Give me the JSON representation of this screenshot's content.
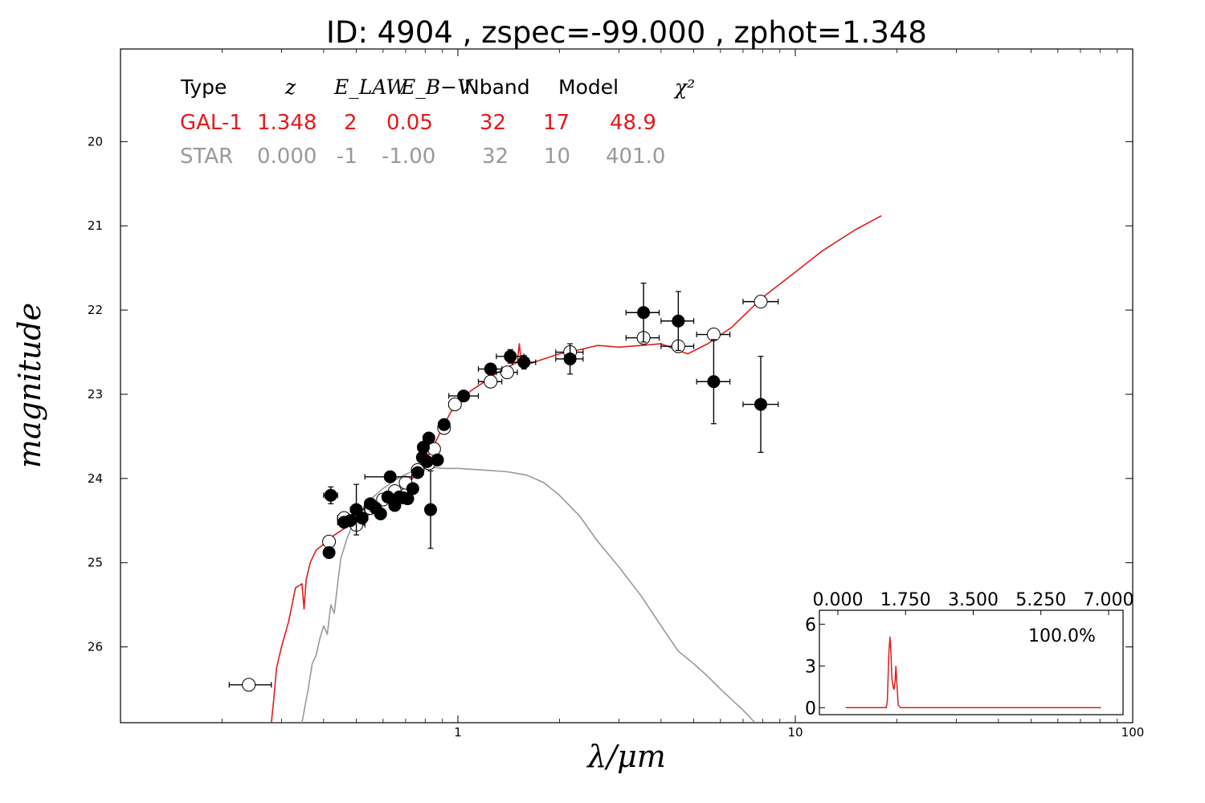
{
  "chart_data": [
    {
      "type": "scatter",
      "title": "ID:  4904  , zspec=-99.000 , zphot=1.348",
      "xlabel": "λ/μm",
      "ylabel": "magnitude",
      "xscale": "log",
      "xlim": [
        0.1,
        100
      ],
      "ylim": [
        26.9,
        18.9
      ],
      "y_inverted": true,
      "x_ticks": [
        {
          "value": 1,
          "label": "1"
        },
        {
          "value": 10,
          "label": "10"
        },
        {
          "value": 100,
          "label": "100"
        }
      ],
      "y_ticks": [
        {
          "value": 20,
          "label": "20"
        },
        {
          "value": 21,
          "label": "21"
        },
        {
          "value": 22,
          "label": "22"
        },
        {
          "value": 23,
          "label": "23"
        },
        {
          "value": 24,
          "label": "24"
        },
        {
          "value": 25,
          "label": "25"
        },
        {
          "value": 26,
          "label": "26"
        }
      ],
      "grid": false,
      "fit_table": {
        "headers": [
          "Type",
          "z",
          "E_LAW",
          "E_B−V",
          "Nband",
          "Model",
          "χ²"
        ],
        "rows": [
          {
            "color": "#e41a1c",
            "cells": [
              "GAL-1",
              "1.348",
              "2",
              "0.05",
              "32",
              "17",
              "48.9"
            ]
          },
          {
            "color": "#999999",
            "cells": [
              "STAR",
              "0.000",
              "-1",
              "-1.00",
              "32",
              "10",
              "401.0"
            ]
          }
        ]
      },
      "series": [
        {
          "name": "GAL-1",
          "role": "model-spectrum",
          "color": "#e41a1c",
          "points": [
            [
              0.28,
              26.9
            ],
            [
              0.285,
              26.6
            ],
            [
              0.29,
              26.25
            ],
            [
              0.3,
              26.0
            ],
            [
              0.315,
              25.7
            ],
            [
              0.33,
              25.3
            ],
            [
              0.345,
              25.25
            ],
            [
              0.35,
              25.55
            ],
            [
              0.355,
              25.2
            ],
            [
              0.365,
              25.0
            ],
            [
              0.38,
              24.85
            ],
            [
              0.4,
              24.78
            ],
            [
              0.42,
              24.7
            ],
            [
              0.45,
              24.62
            ],
            [
              0.48,
              24.55
            ],
            [
              0.5,
              24.52
            ],
            [
              0.55,
              24.42
            ],
            [
              0.6,
              24.3
            ],
            [
              0.65,
              24.2
            ],
            [
              0.7,
              24.1
            ],
            [
              0.75,
              23.95
            ],
            [
              0.8,
              23.8
            ],
            [
              0.85,
              23.6
            ],
            [
              0.9,
              23.4
            ],
            [
              0.95,
              23.22
            ],
            [
              1.0,
              23.1
            ],
            [
              1.1,
              22.95
            ],
            [
              1.2,
              22.85
            ],
            [
              1.3,
              22.75
            ],
            [
              1.4,
              22.68
            ],
            [
              1.5,
              22.62
            ],
            [
              1.52,
              22.4
            ],
            [
              1.54,
              22.62
            ],
            [
              1.6,
              22.65
            ],
            [
              1.8,
              22.58
            ],
            [
              2.0,
              22.52
            ],
            [
              2.3,
              22.47
            ],
            [
              2.6,
              22.42
            ],
            [
              3.0,
              22.44
            ],
            [
              3.5,
              22.42
            ],
            [
              4.0,
              22.4
            ],
            [
              4.5,
              22.48
            ],
            [
              4.8,
              22.52
            ],
            [
              5.5,
              22.4
            ],
            [
              6.5,
              22.2
            ],
            [
              8.0,
              21.85
            ],
            [
              10,
              21.55
            ],
            [
              12,
              21.3
            ],
            [
              15,
              21.05
            ],
            [
              18,
              20.88
            ]
          ]
        },
        {
          "name": "STAR",
          "role": "model-spectrum",
          "color": "#999999",
          "points": [
            [
              0.345,
              26.9
            ],
            [
              0.36,
              26.5
            ],
            [
              0.37,
              26.2
            ],
            [
              0.38,
              26.1
            ],
            [
              0.39,
              25.9
            ],
            [
              0.4,
              25.75
            ],
            [
              0.41,
              25.85
            ],
            [
              0.42,
              25.5
            ],
            [
              0.43,
              25.6
            ],
            [
              0.44,
              25.25
            ],
            [
              0.45,
              24.95
            ],
            [
              0.47,
              24.7
            ],
            [
              0.5,
              24.45
            ],
            [
              0.55,
              24.25
            ],
            [
              0.6,
              24.12
            ],
            [
              0.65,
              24.02
            ],
            [
              0.7,
              23.95
            ],
            [
              0.75,
              23.9
            ],
            [
              0.8,
              23.88
            ],
            [
              0.85,
              23.87
            ],
            [
              0.9,
              23.88
            ],
            [
              1.0,
              23.88
            ],
            [
              1.2,
              23.9
            ],
            [
              1.4,
              23.92
            ],
            [
              1.6,
              23.96
            ],
            [
              1.8,
              24.05
            ],
            [
              2.0,
              24.2
            ],
            [
              2.3,
              24.45
            ],
            [
              2.6,
              24.75
            ],
            [
              3.0,
              25.05
            ],
            [
              3.5,
              25.4
            ],
            [
              4.0,
              25.75
            ],
            [
              4.5,
              26.05
            ],
            [
              5.0,
              26.2
            ],
            [
              5.5,
              26.35
            ],
            [
              6.0,
              26.5
            ],
            [
              7.0,
              26.75
            ],
            [
              7.6,
              26.9
            ]
          ]
        },
        {
          "role": "observed",
          "style": "filled-circle",
          "points": [
            {
              "x": 0.415,
              "y": 24.88,
              "xerr": [
                0.405,
                0.425
              ],
              "yerr": 0.04
            },
            {
              "x": 0.42,
              "y": 24.2,
              "xerr": [
                0.4,
                0.44
              ],
              "yerr": 0.1
            },
            {
              "x": 0.46,
              "y": 24.52,
              "xerr": [
                0.44,
                0.48
              ],
              "yerr": 0.05
            },
            {
              "x": 0.48,
              "y": 24.5,
              "xerr": [
                0.46,
                0.5
              ],
              "yerr": 0.05
            },
            {
              "x": 0.5,
              "y": 24.37,
              "xerr": [
                0.48,
                0.53
              ],
              "yerr": 0.3
            },
            {
              "x": 0.52,
              "y": 24.47,
              "xerr": [
                0.5,
                0.54
              ],
              "yerr": 0.05
            },
            {
              "x": 0.55,
              "y": 24.3,
              "xerr": [
                0.53,
                0.57
              ],
              "yerr": 0.05
            },
            {
              "x": 0.57,
              "y": 24.35,
              "xerr": [
                0.55,
                0.59
              ],
              "yerr": 0.05
            },
            {
              "x": 0.59,
              "y": 24.42,
              "xerr": [
                0.57,
                0.61
              ],
              "yerr": 0.05
            },
            {
              "x": 0.62,
              "y": 24.22,
              "xerr": [
                0.6,
                0.64
              ],
              "yerr": 0.05
            },
            {
              "x": 0.63,
              "y": 23.98,
              "xerr": [
                0.53,
                0.73
              ],
              "yerr": 0.05
            },
            {
              "x": 0.65,
              "y": 24.32,
              "xerr": [
                0.63,
                0.67
              ],
              "yerr": 0.05
            },
            {
              "x": 0.67,
              "y": 24.22,
              "xerr": [
                0.65,
                0.69
              ],
              "yerr": 0.05
            },
            {
              "x": 0.69,
              "y": 24.23,
              "xerr": [
                0.67,
                0.71
              ],
              "yerr": 0.05
            },
            {
              "x": 0.71,
              "y": 24.24,
              "xerr": [
                0.69,
                0.73
              ],
              "yerr": 0.05
            },
            {
              "x": 0.735,
              "y": 24.12,
              "xerr": [
                0.71,
                0.76
              ],
              "yerr": 0.05
            },
            {
              "x": 0.76,
              "y": 23.93,
              "xerr": [
                0.73,
                0.79
              ],
              "yerr": 0.05
            },
            {
              "x": 0.785,
              "y": 23.75,
              "xerr": [
                0.76,
                0.81
              ],
              "yerr": 0.05
            },
            {
              "x": 0.79,
              "y": 23.63,
              "xerr": [
                0.76,
                0.82
              ],
              "yerr": 0.05
            },
            {
              "x": 0.81,
              "y": 23.8,
              "xerr": [
                0.78,
                0.84
              ],
              "yerr": 0.05
            },
            {
              "x": 0.82,
              "y": 23.52,
              "xerr": [
                0.79,
                0.85
              ],
              "yerr": 0.05
            },
            {
              "x": 0.83,
              "y": 24.37,
              "xerr": [
                0.83,
                0.83
              ],
              "yerr": 0.46
            },
            {
              "x": 0.87,
              "y": 23.78,
              "xerr": [
                0.84,
                0.9
              ],
              "yerr": 0.05
            },
            {
              "x": 0.91,
              "y": 23.36,
              "xerr": [
                0.88,
                0.94
              ],
              "yerr": 0.05
            },
            {
              "x": 1.04,
              "y": 23.02,
              "xerr": [
                0.94,
                1.15
              ],
              "yerr": 0.05
            },
            {
              "x": 1.25,
              "y": 22.7,
              "xerr": [
                1.15,
                1.35
              ],
              "yerr": 0.05
            },
            {
              "x": 1.43,
              "y": 22.55,
              "xerr": [
                1.3,
                1.57
              ],
              "yerr": 0.08
            },
            {
              "x": 1.57,
              "y": 22.62,
              "xerr": [
                1.45,
                1.7
              ],
              "yerr": 0.08
            },
            {
              "x": 2.15,
              "y": 22.58,
              "xerr": [
                1.95,
                2.35
              ],
              "yerr": 0.18
            },
            {
              "x": 3.55,
              "y": 22.03,
              "xerr": [
                3.15,
                3.95
              ],
              "yerr": 0.35
            },
            {
              "x": 4.5,
              "y": 22.13,
              "xerr": [
                4.0,
                5.0
              ],
              "yerr": 0.35
            },
            {
              "x": 5.73,
              "y": 22.85,
              "xerr": [
                5.1,
                6.4
              ],
              "yerr": 0.5
            },
            {
              "x": 7.9,
              "y": 23.12,
              "xerr": [
                7.0,
                8.9
              ],
              "yerr": 0.57
            }
          ]
        },
        {
          "role": "model-photometry",
          "style": "open-circle",
          "points": [
            {
              "x": 0.24,
              "y": 26.45,
              "xerr": [
                0.21,
                0.28
              ]
            },
            {
              "x": 0.415,
              "y": 24.75,
              "xerr": [
                0.405,
                0.425
              ]
            },
            {
              "x": 0.46,
              "y": 24.47,
              "xerr": [
                0.44,
                0.48
              ]
            },
            {
              "x": 0.5,
              "y": 24.55,
              "xerr": [
                0.48,
                0.53
              ]
            },
            {
              "x": 0.55,
              "y": 24.35,
              "xerr": [
                0.53,
                0.57
              ]
            },
            {
              "x": 0.6,
              "y": 24.25,
              "xerr": [
                0.58,
                0.62
              ]
            },
            {
              "x": 0.65,
              "y": 24.15,
              "xerr": [
                0.63,
                0.67
              ]
            },
            {
              "x": 0.7,
              "y": 24.05,
              "xerr": [
                0.68,
                0.72
              ]
            },
            {
              "x": 0.76,
              "y": 23.9,
              "xerr": [
                0.73,
                0.79
              ]
            },
            {
              "x": 0.82,
              "y": 23.82,
              "xerr": [
                0.79,
                0.85
              ]
            },
            {
              "x": 0.85,
              "y": 23.65,
              "xerr": [
                0.82,
                0.88
              ]
            },
            {
              "x": 0.91,
              "y": 23.4,
              "xerr": [
                0.88,
                0.94
              ]
            },
            {
              "x": 0.98,
              "y": 23.12,
              "xerr": [
                0.94,
                1.02
              ]
            },
            {
              "x": 1.25,
              "y": 22.85,
              "xerr": [
                1.15,
                1.35
              ]
            },
            {
              "x": 1.4,
              "y": 22.74,
              "xerr": [
                1.3,
                1.5
              ]
            },
            {
              "x": 2.15,
              "y": 22.5,
              "xerr": [
                1.95,
                2.35
              ]
            },
            {
              "x": 3.55,
              "y": 22.33,
              "xerr": [
                3.15,
                3.95
              ]
            },
            {
              "x": 4.5,
              "y": 22.43,
              "xerr": [
                4.0,
                5.0
              ]
            },
            {
              "x": 5.73,
              "y": 22.29,
              "xerr": [
                5.1,
                6.4
              ]
            },
            {
              "x": 7.9,
              "y": 21.9,
              "xerr": [
                7.0,
                8.9
              ]
            }
          ]
        }
      ]
    },
    {
      "type": "line",
      "role": "inset-pdz",
      "annotation": "100.0%",
      "xlim": [
        0,
        7
      ],
      "ylim": [
        -0.5,
        7
      ],
      "x_ticks": [
        {
          "value": 0,
          "label": "0.000"
        },
        {
          "value": 1.75,
          "label": "1.750"
        },
        {
          "value": 3.5,
          "label": "3.500"
        },
        {
          "value": 5.25,
          "label": "5.250"
        },
        {
          "value": 7,
          "label": "7.000"
        }
      ],
      "y_ticks": [
        {
          "value": 0,
          "label": "0"
        },
        {
          "value": 3,
          "label": "3"
        },
        {
          "value": 6,
          "label": "6"
        }
      ],
      "series": [
        {
          "color": "#e41a1c",
          "points": [
            [
              0.2,
              0
            ],
            [
              1.25,
              0
            ],
            [
              1.28,
              0.5
            ],
            [
              1.32,
              4.0
            ],
            [
              1.348,
              5.1
            ],
            [
              1.37,
              4.0
            ],
            [
              1.4,
              2.0
            ],
            [
              1.43,
              1.5
            ],
            [
              1.45,
              1.3
            ],
            [
              1.48,
              2.0
            ],
            [
              1.5,
              3.0
            ],
            [
              1.52,
              2.0
            ],
            [
              1.56,
              0.2
            ],
            [
              1.62,
              0
            ],
            [
              6.8,
              0
            ]
          ]
        }
      ]
    }
  ]
}
